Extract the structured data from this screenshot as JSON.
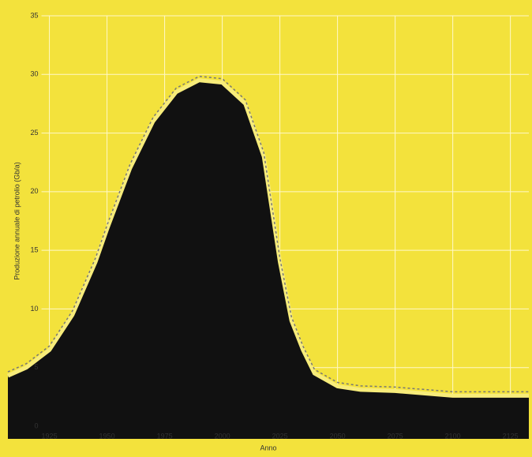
{
  "chart_data": {
    "type": "area",
    "y_label": "Produzione annuale di petrolio (Gb/a)",
    "x_label": "Anno",
    "x": [
      1907,
      1915,
      1925,
      1935,
      1945,
      1950,
      1960,
      1970,
      1980,
      1990,
      2000,
      2010,
      2018,
      2025,
      2030,
      2035,
      2040,
      2050,
      2060,
      2075,
      2100,
      2125,
      2133
    ],
    "values": [
      4.3,
      5,
      6.5,
      9.5,
      14,
      16.8,
      22,
      26,
      28.5,
      29.5,
      29.3,
      27.5,
      23,
      14,
      9,
      6.5,
      4.5,
      3.4,
      3.1,
      3.0,
      2.6,
      2.6,
      2.6
    ],
    "color": "#111111",
    "background": "#f3e23c",
    "xlim": [
      1907,
      2133
    ],
    "ylim": [
      0,
      35
    ],
    "xticks": [
      1925,
      1950,
      1975,
      2000,
      2025,
      2050,
      2075,
      2100,
      2125
    ],
    "yticks": [
      0,
      5,
      10,
      15,
      20,
      25,
      30,
      35
    ],
    "grid": true
  }
}
